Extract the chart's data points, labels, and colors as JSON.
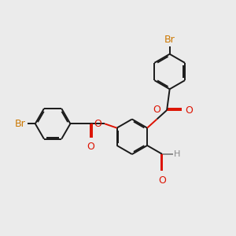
{
  "background_color": "#ebebeb",
  "bond_color": "#1a1a1a",
  "oxygen_color": "#dd1100",
  "bromine_color": "#cc7700",
  "h_color": "#888888",
  "lw": 1.4,
  "dbl_sep": 0.06,
  "figsize": [
    3.0,
    3.0
  ],
  "dpi": 100,
  "xlim": [
    0,
    10
  ],
  "ylim": [
    0,
    10
  ]
}
